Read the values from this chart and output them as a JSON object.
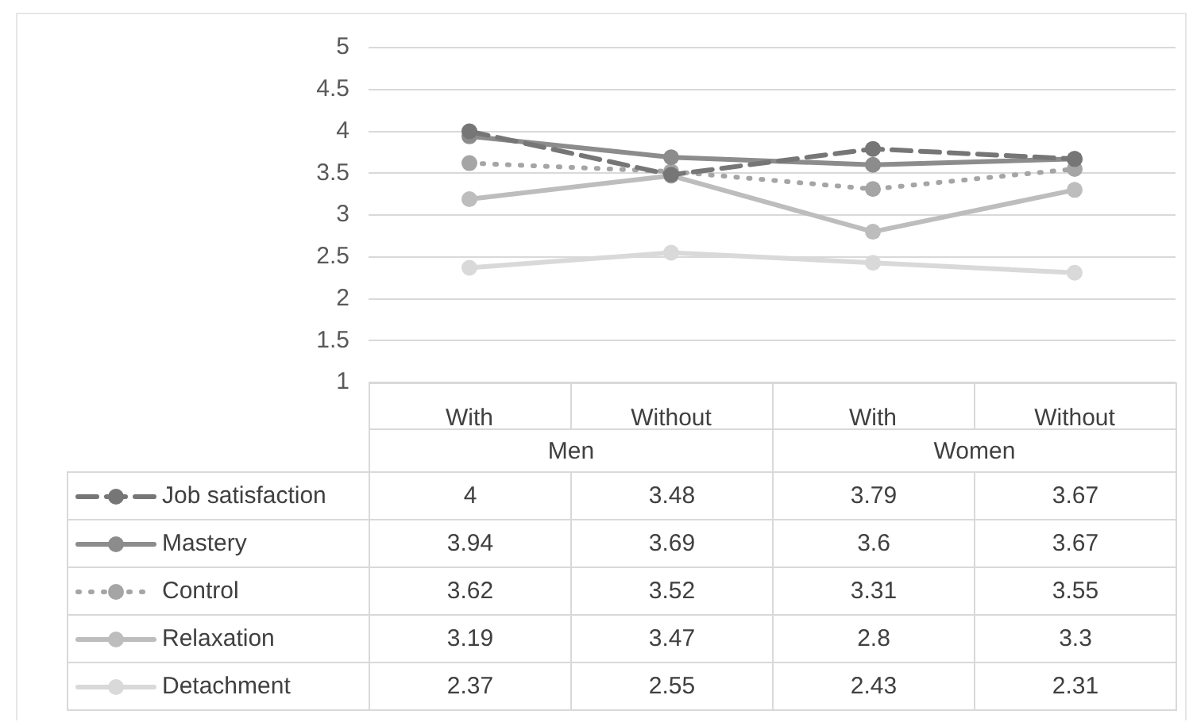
{
  "chart_data": {
    "type": "line",
    "categories": [
      "With",
      "Without",
      "With",
      "Without"
    ],
    "annotations": [
      "Men",
      "Women"
    ],
    "series": [
      {
        "name": "Job satisfaction",
        "color": "#767676",
        "values": [
          4,
          3.48,
          3.79,
          3.67
        ],
        "line_style": "dashed"
      },
      {
        "name": "Mastery",
        "color": "#8c8c8c",
        "values": [
          3.94,
          3.69,
          3.6,
          3.67
        ]
      },
      {
        "name": "Control",
        "color": "#a5a5a5",
        "values": [
          3.62,
          3.52,
          3.31,
          3.55
        ],
        "line_style": "dotted"
      },
      {
        "name": "Relaxation",
        "color": "#bdbdbd",
        "values": [
          3.19,
          3.47,
          2.8,
          3.3
        ]
      },
      {
        "name": "Detachment",
        "color": "#d9d9d9",
        "values": [
          2.37,
          2.55,
          2.43,
          2.31
        ]
      }
    ],
    "ylim": [
      1,
      5
    ],
    "yticks": [
      1,
      1.5,
      2,
      2.5,
      3,
      3.5,
      4,
      4.5,
      5
    ],
    "grid": "y",
    "marker": "circle",
    "legend": "bottom",
    "data_labels": true
  }
}
